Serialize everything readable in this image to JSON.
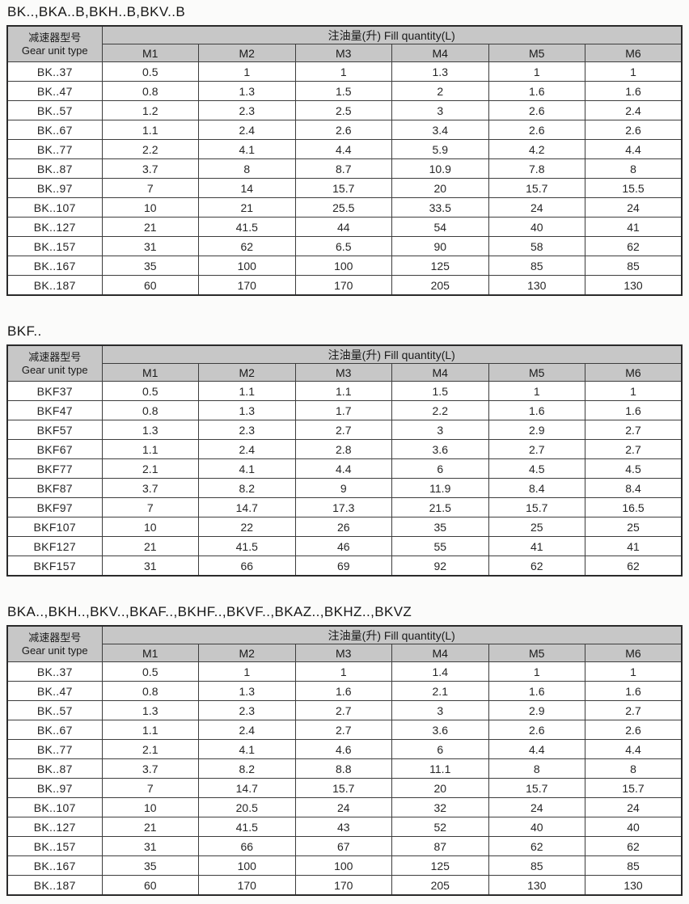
{
  "document": {
    "kind": "gear-unit-fill-quantity-tables"
  },
  "colors": {
    "header_bg": "#c7c7c7",
    "border": "#3d3d3d",
    "outer_border": "#2a2a2a",
    "text": "#1c1c1c",
    "page_bg": "#fbfbfa"
  },
  "tables": [
    {
      "title": "BK..,BKA..B,BKH..B,BKV..B",
      "gear_header_zh": "减速器型号",
      "gear_header_en": "Gear unit type",
      "fill_header": "注油量(升) Fill quantity(L)",
      "columns": [
        "M1",
        "M2",
        "M3",
        "M4",
        "M5",
        "M6"
      ],
      "rows": [
        {
          "model": "BK..37",
          "values": [
            "0.5",
            "1",
            "1",
            "1.3",
            "1",
            "1"
          ]
        },
        {
          "model": "BK..47",
          "values": [
            "0.8",
            "1.3",
            "1.5",
            "2",
            "1.6",
            "1.6"
          ]
        },
        {
          "model": "BK..57",
          "values": [
            "1.2",
            "2.3",
            "2.5",
            "3",
            "2.6",
            "2.4"
          ]
        },
        {
          "model": "BK..67",
          "values": [
            "1.1",
            "2.4",
            "2.6",
            "3.4",
            "2.6",
            "2.6"
          ]
        },
        {
          "model": "BK..77",
          "values": [
            "2.2",
            "4.1",
            "4.4",
            "5.9",
            "4.2",
            "4.4"
          ]
        },
        {
          "model": "BK..87",
          "values": [
            "3.7",
            "8",
            "8.7",
            "10.9",
            "7.8",
            "8"
          ]
        },
        {
          "model": "BK..97",
          "values": [
            "7",
            "14",
            "15.7",
            "20",
            "15.7",
            "15.5"
          ]
        },
        {
          "model": "BK..107",
          "values": [
            "10",
            "21",
            "25.5",
            "33.5",
            "24",
            "24"
          ]
        },
        {
          "model": "BK..127",
          "values": [
            "21",
            "41.5",
            "44",
            "54",
            "40",
            "41"
          ]
        },
        {
          "model": "BK..157",
          "values": [
            "31",
            "62",
            "6.5",
            "90",
            "58",
            "62"
          ]
        },
        {
          "model": "BK..167",
          "values": [
            "35",
            "100",
            "100",
            "125",
            "85",
            "85"
          ]
        },
        {
          "model": "BK..187",
          "values": [
            "60",
            "170",
            "170",
            "205",
            "130",
            "130"
          ]
        }
      ]
    },
    {
      "title": "BKF..",
      "gear_header_zh": "减速器型号",
      "gear_header_en": "Gear unit type",
      "fill_header": "注油量(升) Fill quantity(L)",
      "columns": [
        "M1",
        "M2",
        "M3",
        "M4",
        "M5",
        "M6"
      ],
      "rows": [
        {
          "model": "BKF37",
          "values": [
            "0.5",
            "1.1",
            "1.1",
            "1.5",
            "1",
            "1"
          ]
        },
        {
          "model": "BKF47",
          "values": [
            "0.8",
            "1.3",
            "1.7",
            "2.2",
            "1.6",
            "1.6"
          ]
        },
        {
          "model": "BKF57",
          "values": [
            "1.3",
            "2.3",
            "2.7",
            "3",
            "2.9",
            "2.7"
          ]
        },
        {
          "model": "BKF67",
          "values": [
            "1.1",
            "2.4",
            "2.8",
            "3.6",
            "2.7",
            "2.7"
          ]
        },
        {
          "model": "BKF77",
          "values": [
            "2.1",
            "4.1",
            "4.4",
            "6",
            "4.5",
            "4.5"
          ]
        },
        {
          "model": "BKF87",
          "values": [
            "3.7",
            "8.2",
            "9",
            "11.9",
            "8.4",
            "8.4"
          ]
        },
        {
          "model": "BKF97",
          "values": [
            "7",
            "14.7",
            "17.3",
            "21.5",
            "15.7",
            "16.5"
          ]
        },
        {
          "model": "BKF107",
          "values": [
            "10",
            "22",
            "26",
            "35",
            "25",
            "25"
          ]
        },
        {
          "model": "BKF127",
          "values": [
            "21",
            "41.5",
            "46",
            "55",
            "41",
            "41"
          ]
        },
        {
          "model": "BKF157",
          "values": [
            "31",
            "66",
            "69",
            "92",
            "62",
            "62"
          ]
        }
      ]
    },
    {
      "title": "BKA..,BKH..,BKV..,BKAF..,BKHF..,BKVF..,BKAZ..,BKHZ..,BKVZ",
      "gear_header_zh": "减速器型号",
      "gear_header_en": "Gear unit type",
      "fill_header": "注油量(升) Fill quantity(L)",
      "columns": [
        "M1",
        "M2",
        "M3",
        "M4",
        "M5",
        "M6"
      ],
      "rows": [
        {
          "model": "BK..37",
          "values": [
            "0.5",
            "1",
            "1",
            "1.4",
            "1",
            "1"
          ]
        },
        {
          "model": "BK..47",
          "values": [
            "0.8",
            "1.3",
            "1.6",
            "2.1",
            "1.6",
            "1.6"
          ]
        },
        {
          "model": "BK..57",
          "values": [
            "1.3",
            "2.3",
            "2.7",
            "3",
            "2.9",
            "2.7"
          ]
        },
        {
          "model": "BK..67",
          "values": [
            "1.1",
            "2.4",
            "2.7",
            "3.6",
            "2.6",
            "2.6"
          ]
        },
        {
          "model": "BK..77",
          "values": [
            "2.1",
            "4.1",
            "4.6",
            "6",
            "4.4",
            "4.4"
          ]
        },
        {
          "model": "BK..87",
          "values": [
            "3.7",
            "8.2",
            "8.8",
            "11.1",
            "8",
            "8"
          ]
        },
        {
          "model": "BK..97",
          "values": [
            "7",
            "14.7",
            "15.7",
            "20",
            "15.7",
            "15.7"
          ]
        },
        {
          "model": "BK..107",
          "values": [
            "10",
            "20.5",
            "24",
            "32",
            "24",
            "24"
          ]
        },
        {
          "model": "BK..127",
          "values": [
            "21",
            "41.5",
            "43",
            "52",
            "40",
            "40"
          ]
        },
        {
          "model": "BK..157",
          "values": [
            "31",
            "66",
            "67",
            "87",
            "62",
            "62"
          ]
        },
        {
          "model": "BK..167",
          "values": [
            "35",
            "100",
            "100",
            "125",
            "85",
            "85"
          ]
        },
        {
          "model": "BK..187",
          "values": [
            "60",
            "170",
            "170",
            "205",
            "130",
            "130"
          ]
        }
      ]
    }
  ]
}
